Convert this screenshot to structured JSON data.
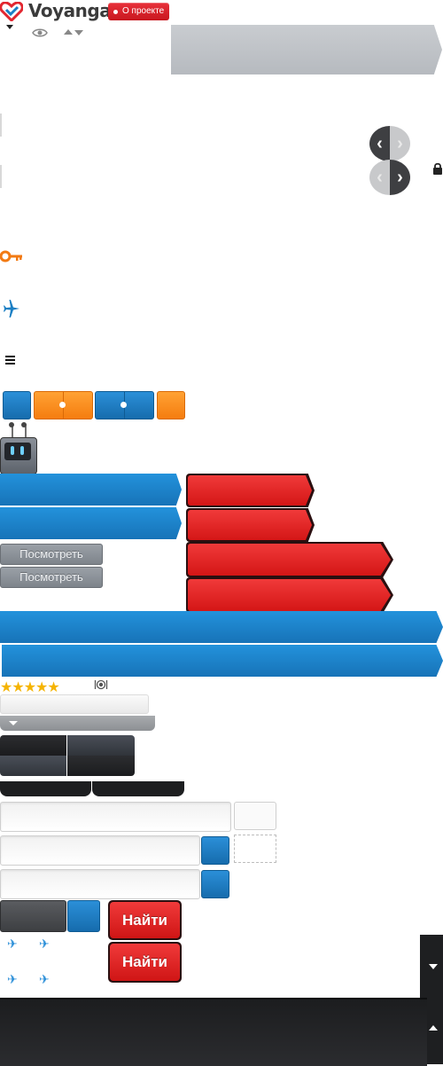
{
  "brand": {
    "name": "Voyanga",
    "about_label": "О проекте"
  },
  "buttons": {
    "view_label_1": "Посмотреть",
    "view_label_2": "Посмотреть",
    "find_label_1": "Найти",
    "find_label_2": "Найти"
  },
  "rating": {
    "stars": 5,
    "max": 5,
    "star_glyphs": "★★★★★"
  },
  "icons": {
    "logo": "heart-check-icon",
    "dropdown": "triangle-down-icon",
    "eye": "eye-icon",
    "sort": "sort-arrows-icon",
    "prev": "chevron-left-icon",
    "next": "chevron-right-icon",
    "lock": "lock-icon",
    "key": "key-icon",
    "plane": "airplane-icon",
    "menu": "menu-icon",
    "robot": "robot-icon",
    "restaurant": "restaurant-icon"
  },
  "colors": {
    "brand_red": "#d41616",
    "accent_blue": "#1b7fc4",
    "accent_orange": "#f7891f",
    "key_orange": "#f27a13",
    "dark": "#1d1e20"
  }
}
